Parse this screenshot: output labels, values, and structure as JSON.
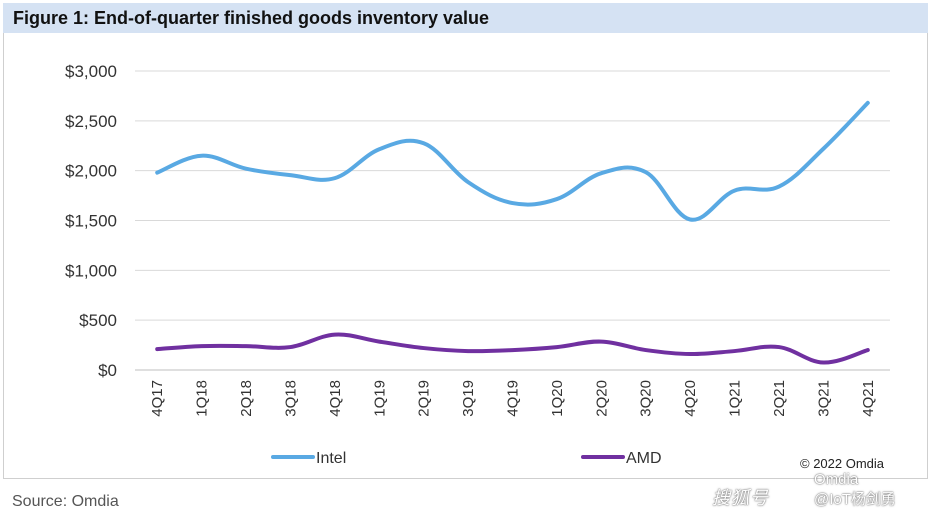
{
  "figure_title": "Figure 1: End-of-quarter finished goods inventory value",
  "source": "Source: Omdia",
  "copyright": "© 2022 Omdia",
  "watermark": {
    "platform": "搜狐号",
    "account": "@IoT杨剑勇",
    "brand": "Omdia"
  },
  "colors": {
    "intel": "#59a9e3",
    "amd": "#7030a0",
    "title_bg": "#d5e2f3",
    "grid": "#d9d9d9"
  },
  "chart_data": {
    "type": "line",
    "title": "Figure 1: End-of-quarter finished goods inventory value",
    "categories": [
      "4Q17",
      "1Q18",
      "2Q18",
      "3Q18",
      "4Q18",
      "1Q19",
      "2Q19",
      "3Q19",
      "4Q19",
      "1Q20",
      "2Q20",
      "3Q20",
      "4Q20",
      "1Q21",
      "2Q21",
      "3Q21",
      "4Q21"
    ],
    "series": [
      {
        "name": "Intel",
        "color": "#59a9e3",
        "values": [
          1980,
          2150,
          2020,
          1955,
          1925,
          2215,
          2275,
          1885,
          1675,
          1715,
          1975,
          1985,
          1510,
          1800,
          1840,
          2220,
          2680
        ]
      },
      {
        "name": "AMD",
        "color": "#7030a0",
        "values": [
          210,
          240,
          240,
          230,
          355,
          285,
          220,
          190,
          200,
          230,
          285,
          200,
          160,
          190,
          230,
          75,
          200
        ]
      }
    ],
    "y_ticks": [
      "$3,000",
      "$2,500",
      "$2,000",
      "$1,500",
      "$1,000",
      "$500",
      "$0"
    ],
    "y_tick_values": [
      3000,
      2500,
      2000,
      1500,
      1000,
      500,
      0
    ],
    "ylim": [
      0,
      3000
    ],
    "xlabel": "",
    "ylabel": "",
    "grid": true,
    "legend_position": "bottom"
  }
}
